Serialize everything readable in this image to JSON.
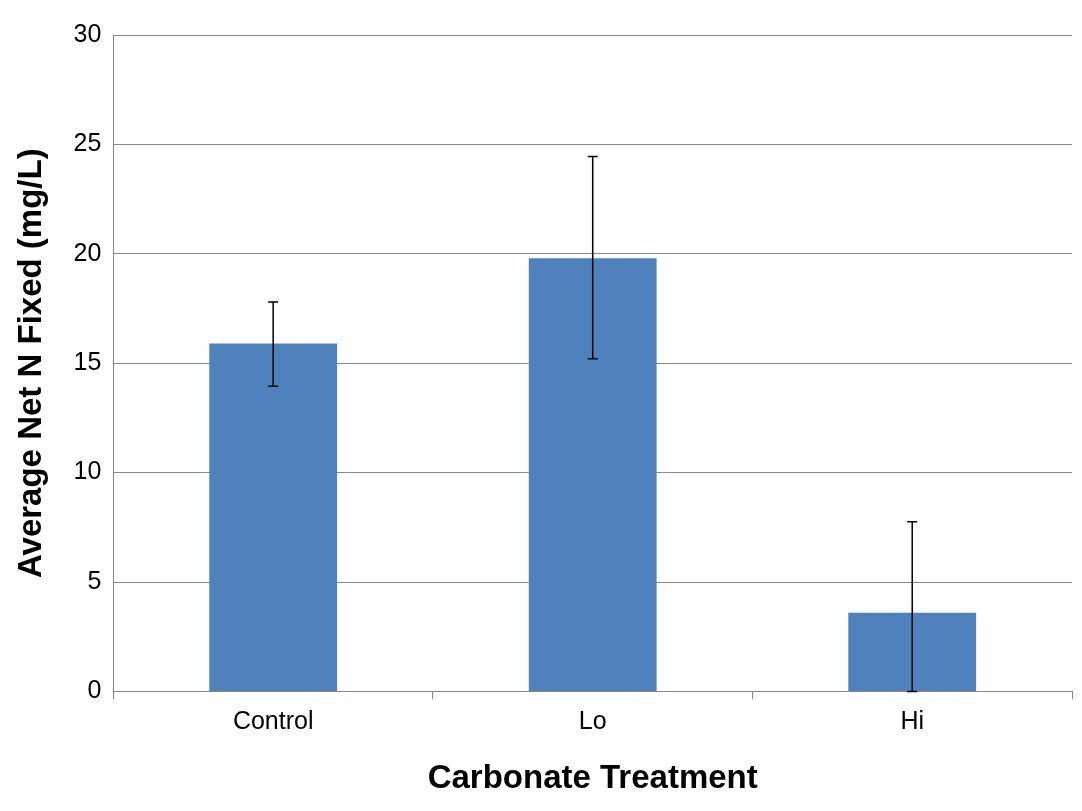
{
  "chart_data": {
    "type": "bar",
    "xlabel": "Carbonate Treatment",
    "ylabel": "Average Net N Fixed (mg/L)",
    "categories": [
      "Control",
      "Lo",
      "Hi"
    ],
    "values": [
      15.9,
      19.8,
      3.6
    ],
    "errors": [
      [
        13.95,
        17.8
      ],
      [
        15.2,
        24.45
      ],
      [
        0,
        7.75
      ]
    ],
    "color": "#4f81bd",
    "ylim": [
      0,
      30
    ],
    "yticks": [
      0,
      5,
      10,
      15,
      20,
      25,
      30
    ],
    "grid": "y",
    "legend": false
  }
}
